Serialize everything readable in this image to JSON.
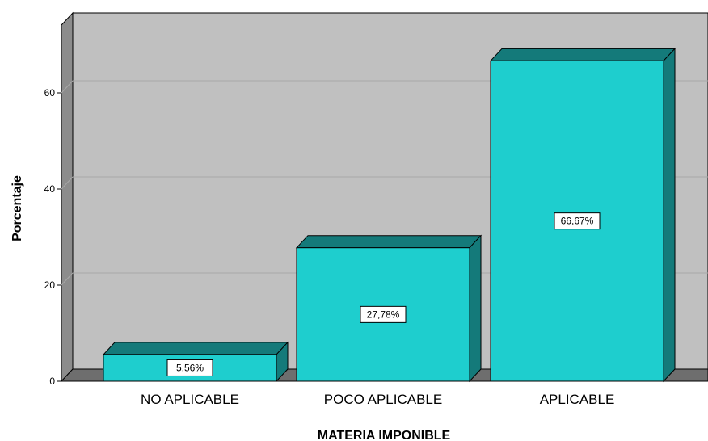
{
  "chart_data": {
    "type": "bar",
    "categories": [
      "NO APLICABLE",
      "POCO APLICABLE",
      "APLICABLE"
    ],
    "values": [
      5.56,
      27.78,
      66.67
    ],
    "data_labels": [
      "5,56%",
      "27,78%",
      "66,67%"
    ],
    "xlabel": "MATERIA IMPONIBLE",
    "ylabel": "Porcentaje",
    "ylim": [
      0,
      70
    ],
    "yticks": [
      0,
      20,
      40,
      60
    ],
    "ytick_labels": [
      "0",
      "20",
      "40",
      "60"
    ],
    "grid": true,
    "legend": "none",
    "style": "3d",
    "colors": {
      "plot_back": "#c0c0c0",
      "plot_side": "#8c8c8c",
      "plot_floor": "#6e6e6e",
      "bar_front": "#1ecece",
      "bar_top": "#147a7a",
      "bar_side": "#147a7a",
      "gridline": "#a9a9a9"
    }
  }
}
